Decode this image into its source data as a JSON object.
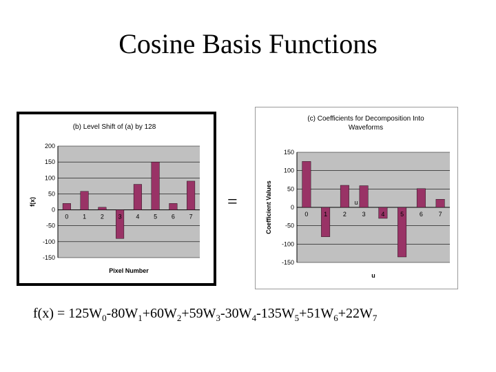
{
  "slide": {
    "title": "Cosine Basis Functions",
    "equals_sign": "=",
    "formula": {
      "prefix": "f(x) = ",
      "terms": [
        {
          "coef": "125",
          "var": "W",
          "sub": "0"
        },
        {
          "coef": "-80",
          "var": "W",
          "sub": "1"
        },
        {
          "coef": "+60",
          "var": "W",
          "sub": "2"
        },
        {
          "coef": "+59",
          "var": "W",
          "sub": "3"
        },
        {
          "coef": "-30",
          "var": "W",
          "sub": "4"
        },
        {
          "coef": "-135",
          "var": "W",
          "sub": "5"
        },
        {
          "coef": "+51",
          "var": "W",
          "sub": "6"
        },
        {
          "coef": "+22",
          "var": "W",
          "sub": "7"
        }
      ]
    }
  },
  "chart_data": [
    {
      "type": "bar",
      "title": "(b) Level Shift of (a) by 128",
      "xlabel": "Pixel Number",
      "ylabel": "f(x)",
      "categories": [
        "0",
        "1",
        "2",
        "3",
        "4",
        "5",
        "6",
        "7"
      ],
      "values": [
        20,
        58,
        8,
        -90,
        80,
        150,
        20,
        90
      ],
      "ylim": [
        -150,
        200
      ],
      "yticks": [
        "200",
        "150",
        "100",
        "50",
        "0",
        "-50",
        "-100",
        "-150"
      ],
      "ytick_values": [
        200,
        150,
        100,
        50,
        0,
        -50,
        -100,
        -150
      ],
      "bar_color": "#993366",
      "plot_bg": "#c0c0c0",
      "grid": true
    },
    {
      "type": "bar",
      "title": "(c) Coefficients for Decomposition Into Waveforms",
      "title_lines": [
        "(c) Coefficients for Decomposition Into",
        "Waveforms"
      ],
      "xlabel": "u",
      "inner_label": "u",
      "ylabel": "Coefficient Values",
      "categories": [
        "0",
        "1",
        "2",
        "3",
        "4",
        "5",
        "6",
        "7"
      ],
      "values": [
        125,
        -80,
        60,
        59,
        -30,
        -135,
        51,
        22
      ],
      "ylim": [
        -150,
        150
      ],
      "yticks": [
        "150",
        "100",
        "50",
        "0",
        "-50",
        "-100",
        "-150"
      ],
      "ytick_values": [
        150,
        100,
        50,
        0,
        -50,
        -100,
        -150
      ],
      "bar_color": "#993366",
      "plot_bg": "#c0c0c0",
      "grid": true
    }
  ]
}
